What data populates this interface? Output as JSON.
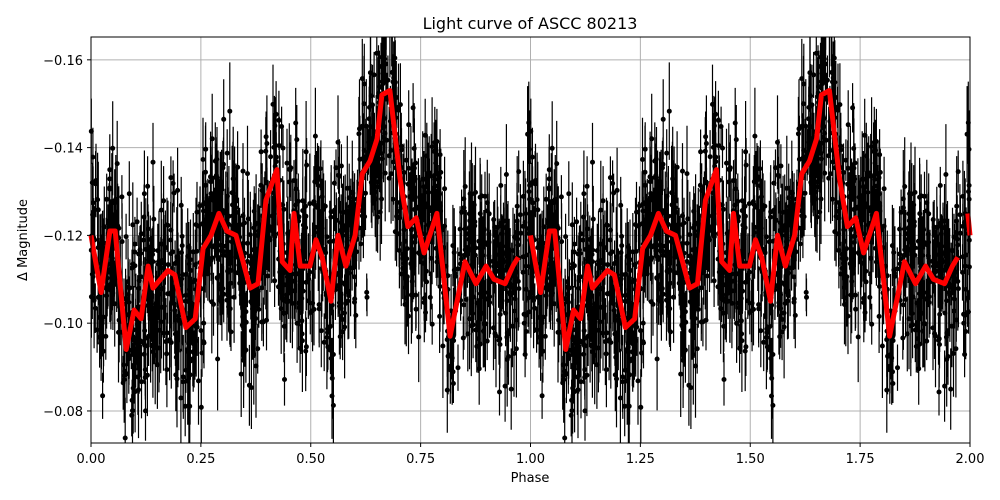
{
  "chart_data": {
    "type": "scatter",
    "title": "Light curve of ASCC 80213",
    "xlabel": "Phase",
    "ylabel": "Δ Magnitude",
    "xlim": [
      0.0,
      2.0
    ],
    "ylim": [
      -0.0727,
      -0.1652
    ],
    "y_inverted": true,
    "grid": true,
    "legend": null,
    "xticks": [
      "0.00",
      "0.25",
      "0.50",
      "0.75",
      "1.00",
      "1.25",
      "1.50",
      "1.75",
      "2.00"
    ],
    "xtick_values": [
      0.0,
      0.25,
      0.5,
      0.75,
      1.0,
      1.25,
      1.5,
      1.75,
      2.0
    ],
    "yticks": [
      "−0.16",
      "−0.14",
      "−0.12",
      "−0.10",
      "−0.08"
    ],
    "ytick_values": [
      -0.16,
      -0.14,
      -0.12,
      -0.1,
      -0.08
    ],
    "series": [
      {
        "name": "observations",
        "kind": "errorbar-scatter",
        "color": "#000000",
        "description": "Dense black points with vertical error bars spanning roughly -0.075 to -0.165, phase-folded and repeated over two cycles"
      },
      {
        "name": "binned curve",
        "kind": "line",
        "color": "#ff0000",
        "linewidth": 5,
        "period_repeat": true,
        "x": [
          0.0,
          0.023,
          0.043,
          0.055,
          0.08,
          0.098,
          0.114,
          0.13,
          0.141,
          0.175,
          0.191,
          0.216,
          0.237,
          0.255,
          0.273,
          0.291,
          0.309,
          0.33,
          0.362,
          0.38,
          0.398,
          0.423,
          0.435,
          0.453,
          0.462,
          0.476,
          0.498,
          0.512,
          0.526,
          0.546,
          0.562,
          0.58,
          0.601,
          0.617,
          0.635,
          0.651,
          0.662,
          0.68,
          0.703,
          0.721,
          0.74,
          0.758,
          0.787,
          0.817,
          0.851,
          0.876,
          0.899,
          0.917,
          0.942,
          0.96,
          0.972
        ],
        "y": [
          -0.12,
          -0.107,
          -0.121,
          -0.121,
          -0.094,
          -0.103,
          -0.101,
          -0.113,
          -0.108,
          -0.112,
          -0.111,
          -0.099,
          -0.101,
          -0.117,
          -0.12,
          -0.125,
          -0.121,
          -0.12,
          -0.108,
          -0.109,
          -0.128,
          -0.135,
          -0.114,
          -0.112,
          -0.125,
          -0.113,
          -0.113,
          -0.119,
          -0.115,
          -0.105,
          -0.12,
          -0.113,
          -0.12,
          -0.134,
          -0.137,
          -0.142,
          -0.152,
          -0.153,
          -0.133,
          -0.122,
          -0.124,
          -0.116,
          -0.125,
          -0.097,
          -0.114,
          -0.109,
          -0.113,
          -0.11,
          -0.109,
          -0.113,
          -0.115
        ]
      }
    ]
  }
}
